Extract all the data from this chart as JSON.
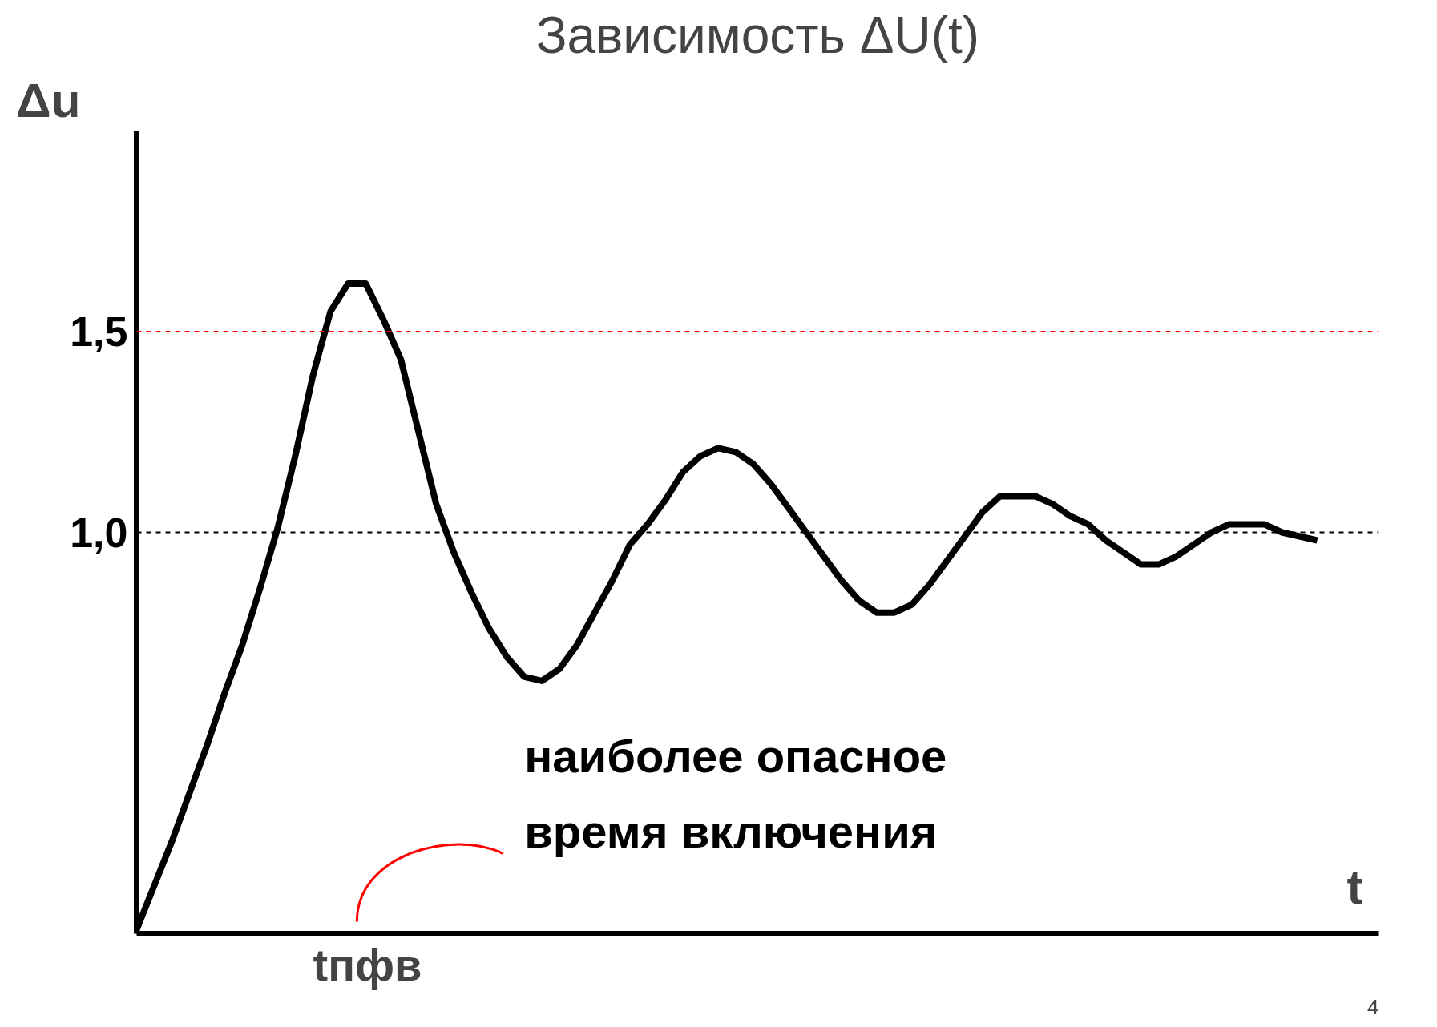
{
  "chart_data": {
    "type": "line",
    "title": "Зависимость ΔU(t)",
    "xlabel": "t",
    "ylabel": "Δu",
    "categories": [
      null,
      null,
      null,
      null,
      null,
      null,
      null,
      null,
      null,
      null,
      null,
      null,
      null,
      null,
      null,
      null,
      null,
      null,
      null,
      null,
      null,
      null,
      null,
      null,
      null,
      null,
      null,
      null,
      null,
      null,
      null,
      null,
      null,
      null,
      null,
      null,
      null,
      null,
      null,
      null,
      null,
      null,
      null,
      null,
      null,
      null,
      null,
      null,
      null,
      null,
      null,
      null,
      null,
      null,
      null,
      null,
      null,
      null,
      null,
      null,
      null,
      null,
      null,
      null,
      null,
      null,
      null,
      null
    ],
    "series": [
      {
        "color": "#000000",
        "values": [
          0.01,
          0.12,
          0.23,
          0.35,
          0.47,
          0.6,
          0.72,
          0.86,
          1.01,
          1.19,
          1.39,
          1.55,
          1.62,
          1.62,
          1.53,
          1.43,
          1.25,
          1.07,
          0.95,
          0.85,
          0.76,
          0.69,
          0.64,
          0.63,
          0.66,
          0.72,
          0.8,
          0.88,
          0.97,
          1.02,
          1.08,
          1.15,
          1.19,
          1.21,
          1.2,
          1.17,
          1.12,
          1.06,
          1.0,
          0.94,
          0.88,
          0.83,
          0.8,
          0.8,
          0.82,
          0.87,
          0.93,
          0.99,
          1.05,
          1.09,
          1.09,
          1.09,
          1.07,
          1.04,
          1.02,
          0.98,
          0.95,
          0.92,
          0.92,
          0.94,
          0.97,
          1.0,
          1.02,
          1.02,
          1.02,
          1.0,
          0.99,
          0.98
        ]
      }
    ],
    "ylim": [
      0,
      2.0
    ],
    "yticks": [
      {
        "value": 1.0,
        "label": "1,0"
      },
      {
        "value": 1.5,
        "label": "1,5"
      }
    ],
    "tick_labels": "y",
    "grid": false,
    "marker": "none",
    "line_style": "solid",
    "ref_lines": [
      {
        "axis": "y",
        "value": 1.5,
        "color": "#ff0000",
        "line_style": "dashed"
      },
      {
        "axis": "y",
        "value": 1.0,
        "color": "#000000",
        "line_style": "dashed"
      }
    ],
    "annotations": [
      "наиболее опасное\nвремя включения",
      "tпфв",
      "4"
    ]
  }
}
